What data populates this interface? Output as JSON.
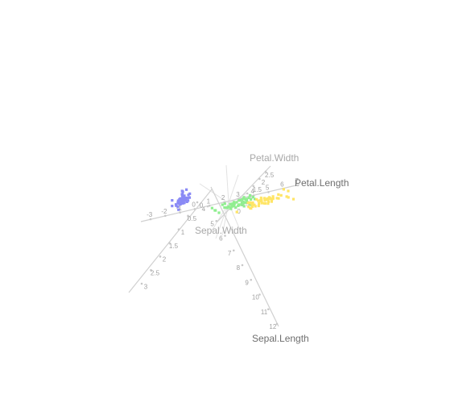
{
  "chart_data": {
    "type": "scatter",
    "title": "",
    "colors": {
      "setosa": "#8a8af5",
      "versicolor": "#90ee90",
      "virginica": "#ffe566",
      "axis": "#d0d0d0",
      "tick_text": "#a0a0a0",
      "label_text": "#6e6e6e"
    },
    "axes": [
      {
        "name": "Sepal.Length",
        "ticks": [
          "4",
          "5",
          "6",
          "7",
          "8",
          "9",
          "10",
          "11",
          "12"
        ]
      },
      {
        "name": "Petal.Length",
        "ticks": [
          "-3",
          "-2",
          "-1",
          "0",
          "1",
          "2",
          "3",
          "4",
          "5",
          "6",
          "7"
        ]
      },
      {
        "name": "Petal.Width",
        "ticks": [
          "0",
          "0.5",
          "1",
          "1.5",
          "2",
          "2.5"
        ]
      },
      {
        "name": "Sepal.Width",
        "ticks": [
          "0",
          "0.5",
          "1",
          "1.5",
          "2",
          "2.5",
          "3"
        ]
      }
    ],
    "series": [
      {
        "class": "setosa",
        "points": [
          [
            -2.7,
            0.32
          ],
          [
            -2.72,
            -0.18
          ],
          [
            -2.89,
            -0.14
          ],
          [
            -2.75,
            -0.32
          ],
          [
            -2.73,
            0.33
          ],
          [
            -2.28,
            0.74
          ],
          [
            -2.82,
            -0.09
          ],
          [
            -2.63,
            0.16
          ],
          [
            -2.89,
            -0.58
          ],
          [
            -2.67,
            -0.11
          ],
          [
            -2.51,
            0.65
          ],
          [
            -2.61,
            0.02
          ],
          [
            -2.79,
            -0.24
          ],
          [
            -3.22,
            -0.51
          ],
          [
            -2.64,
            1.18
          ],
          [
            -2.39,
            1.34
          ],
          [
            -2.62,
            0.81
          ],
          [
            -2.65,
            0.31
          ],
          [
            -2.2,
            0.87
          ],
          [
            -2.59,
            0.51
          ],
          [
            -2.31,
            0.39
          ],
          [
            -2.54,
            0.43
          ],
          [
            -3.22,
            0.13
          ],
          [
            -2.3,
            0.1
          ],
          [
            -2.36,
            -0.04
          ],
          [
            -2.51,
            -0.15
          ],
          [
            -2.47,
            0.13
          ],
          [
            -2.56,
            0.37
          ],
          [
            -2.64,
            0.31
          ],
          [
            -2.63,
            -0.19
          ],
          [
            -2.59,
            -0.2
          ],
          [
            -2.41,
            0.41
          ],
          [
            -2.65,
            0.81
          ],
          [
            -2.6,
            1.1
          ],
          [
            -2.67,
            -0.11
          ],
          [
            -2.87,
            0.08
          ],
          [
            -2.63,
            0.61
          ],
          [
            -2.8,
            0.21
          ],
          [
            -2.98,
            -0.48
          ],
          [
            -2.59,
            0.23
          ],
          [
            -2.77,
            0.27
          ],
          [
            -2.85,
            -0.93
          ],
          [
            -3.0,
            -0.34
          ],
          [
            -2.41,
            0.19
          ],
          [
            -2.21,
            0.44
          ],
          [
            -2.71,
            -0.25
          ],
          [
            -2.54,
            0.5
          ],
          [
            -2.84,
            -0.23
          ],
          [
            -2.54,
            0.59
          ],
          [
            -2.7,
            0.11
          ]
        ]
      },
      {
        "class": "versicolor",
        "points": [
          [
            1.28,
            0.69
          ],
          [
            0.93,
            0.32
          ],
          [
            1.46,
            0.5
          ],
          [
            0.18,
            -0.83
          ],
          [
            1.09,
            0.07
          ],
          [
            0.64,
            -0.42
          ],
          [
            1.1,
            0.28
          ],
          [
            -0.75,
            -1.0
          ],
          [
            1.04,
            0.23
          ],
          [
            -0.01,
            -0.72
          ],
          [
            -0.51,
            -1.27
          ],
          [
            0.51,
            -0.1
          ],
          [
            0.26,
            -0.55
          ],
          [
            0.98,
            -0.12
          ],
          [
            -0.17,
            -0.25
          ],
          [
            0.93,
            0.47
          ],
          [
            0.66,
            -0.35
          ],
          [
            0.23,
            -0.33
          ],
          [
            0.94,
            -0.54
          ],
          [
            0.04,
            -0.58
          ],
          [
            1.12,
            -0.08
          ],
          [
            0.36,
            -0.07
          ],
          [
            1.3,
            -0.33
          ],
          [
            0.92,
            -0.18
          ],
          [
            0.71,
            0.15
          ],
          [
            0.9,
            0.33
          ],
          [
            1.33,
            0.24
          ],
          [
            1.56,
            0.27
          ],
          [
            0.81,
            -0.16
          ],
          [
            -0.31,
            -0.37
          ],
          [
            -0.07,
            -0.7
          ],
          [
            -0.19,
            -0.68
          ],
          [
            0.14,
            -0.31
          ],
          [
            1.38,
            -0.42
          ],
          [
            0.59,
            -0.48
          ],
          [
            0.81,
            0.2
          ],
          [
            1.22,
            0.41
          ],
          [
            0.81,
            -0.37
          ],
          [
            0.25,
            -0.27
          ],
          [
            0.16,
            -0.68
          ],
          [
            0.46,
            -0.67
          ],
          [
            0.89,
            -0.03
          ],
          [
            0.23,
            -0.4
          ],
          [
            -0.71,
            -1.01
          ],
          [
            0.36,
            -0.5
          ],
          [
            0.33,
            -0.21
          ],
          [
            0.38,
            -0.29
          ],
          [
            0.64,
            0.11
          ],
          [
            -0.91,
            -0.75
          ],
          [
            0.3,
            -0.35
          ]
        ]
      },
      {
        "class": "virginica",
        "points": [
          [
            2.53,
            -0.01
          ],
          [
            1.41,
            -0.57
          ],
          [
            2.62,
            0.34
          ],
          [
            1.97,
            -0.18
          ],
          [
            2.35,
            -0.04
          ],
          [
            3.4,
            0.55
          ],
          [
            0.52,
            -1.19
          ],
          [
            2.93,
            0.35
          ],
          [
            2.32,
            -0.24
          ],
          [
            2.92,
            0.78
          ],
          [
            1.66,
            0.24
          ],
          [
            1.8,
            -0.22
          ],
          [
            2.17,
            0.22
          ],
          [
            1.34,
            -0.78
          ],
          [
            1.59,
            -0.54
          ],
          [
            1.9,
            0.12
          ],
          [
            1.95,
            0.04
          ],
          [
            3.49,
            1.18
          ],
          [
            3.79,
            0.26
          ],
          [
            1.3,
            -0.76
          ],
          [
            2.43,
            0.38
          ],
          [
            1.2,
            -0.61
          ],
          [
            3.5,
            0.46
          ],
          [
            1.39,
            -0.2
          ],
          [
            2.28,
            0.33
          ],
          [
            2.61,
            0.56
          ],
          [
            1.26,
            -0.18
          ],
          [
            1.29,
            -0.12
          ],
          [
            2.12,
            -0.21
          ],
          [
            2.39,
            0.46
          ],
          [
            2.84,
            0.37
          ],
          [
            3.23,
            1.37
          ],
          [
            2.16,
            -0.22
          ],
          [
            1.44,
            -0.14
          ],
          [
            1.78,
            -0.5
          ],
          [
            3.08,
            0.69
          ],
          [
            2.14,
            0.14
          ],
          [
            1.9,
            0.05
          ],
          [
            1.17,
            -0.16
          ],
          [
            2.11,
            0.37
          ],
          [
            2.31,
            0.18
          ],
          [
            1.92,
            0.41
          ],
          [
            1.41,
            -0.57
          ],
          [
            2.56,
            0.28
          ],
          [
            2.42,
            0.3
          ],
          [
            1.94,
            0.19
          ],
          [
            1.53,
            -0.38
          ],
          [
            1.76,
            0.08
          ],
          [
            1.9,
            0.12
          ],
          [
            1.39,
            -0.28
          ]
        ]
      }
    ]
  }
}
